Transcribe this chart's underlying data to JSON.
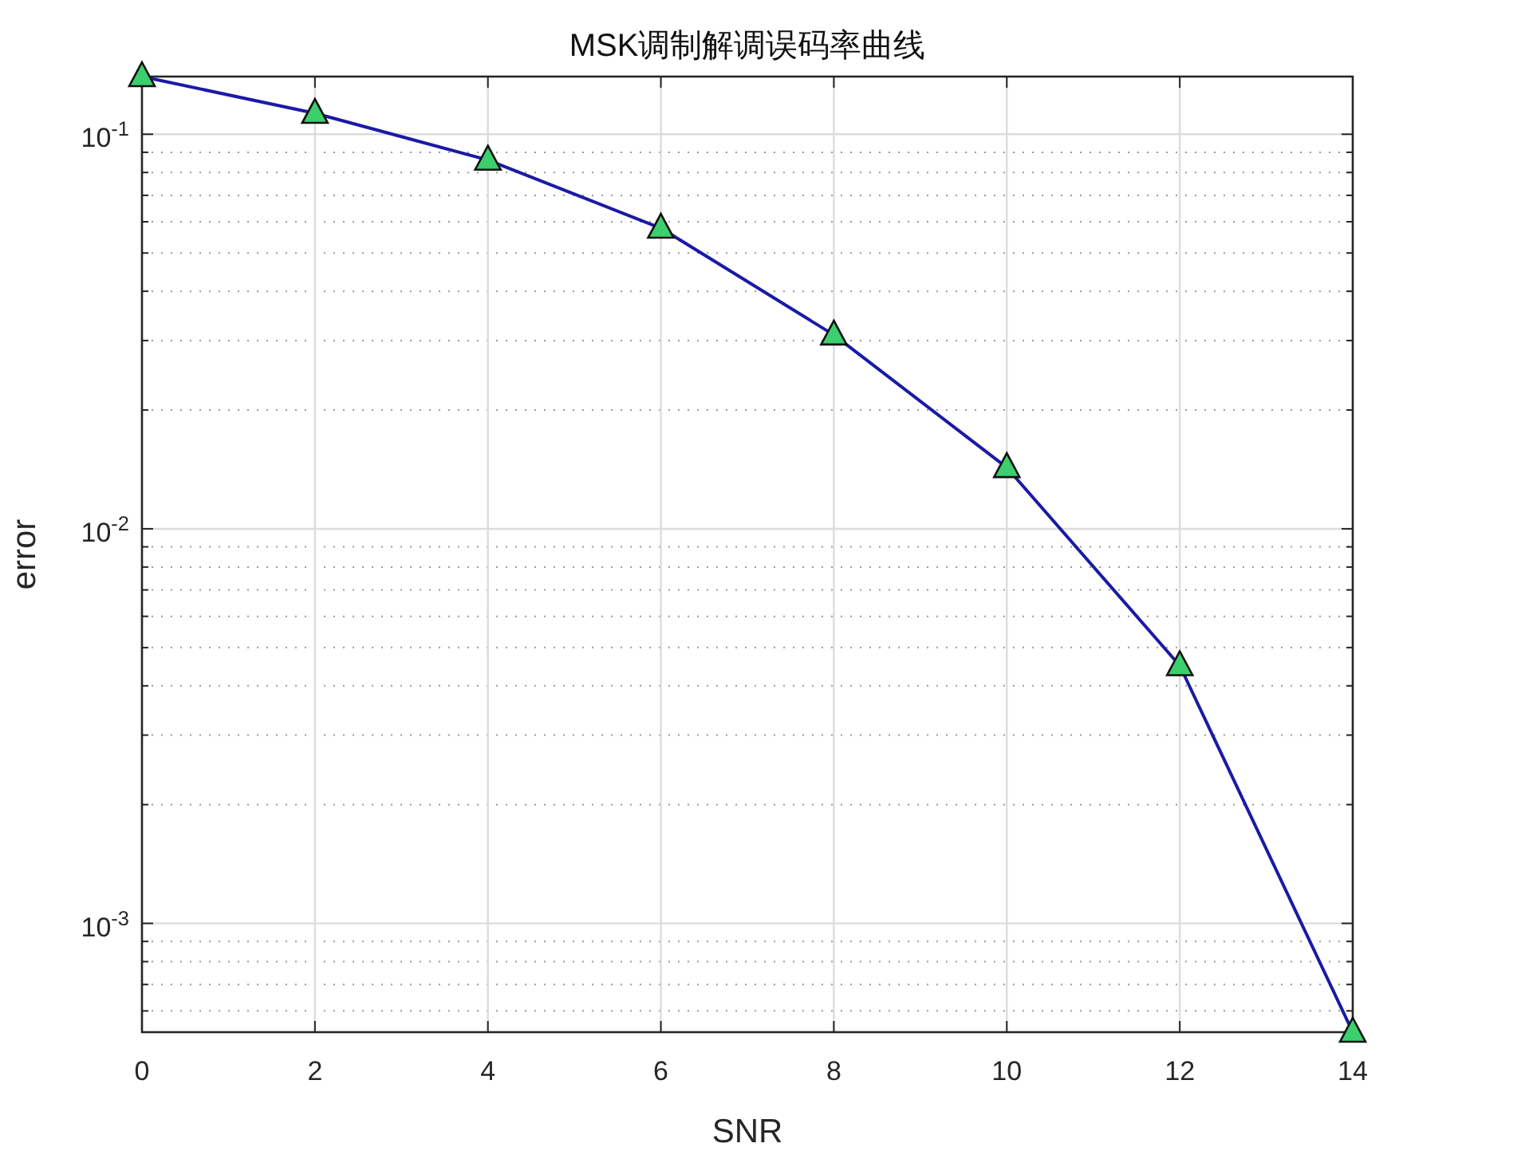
{
  "chart_data": {
    "type": "line",
    "title": "MSK调制解调误码率曲线",
    "xlabel": "SNR",
    "ylabel": "error",
    "x": [
      0,
      2,
      4,
      6,
      8,
      10,
      12,
      14
    ],
    "series": [
      {
        "color": "#1a1aa6",
        "values": [
          0.14,
          0.113,
          0.086,
          0.0578,
          0.031,
          0.0143,
          0.0045,
          0.00053
        ]
      }
    ],
    "xlim": [
      0,
      14
    ],
    "ylim": [
      0.00053,
      0.14
    ],
    "log": "y",
    "grid": true,
    "marker": "triangle",
    "line_style": "solid",
    "xticks": [
      0,
      2,
      4,
      6,
      8,
      10,
      12,
      14
    ],
    "yticks": [
      {
        "value": 0.001,
        "label": "10$^{-3}$"
      },
      {
        "value": 0.01,
        "label": "10$^{-2}$"
      },
      {
        "value": 0.1,
        "label": "10$^{-1}$"
      }
    ]
  }
}
